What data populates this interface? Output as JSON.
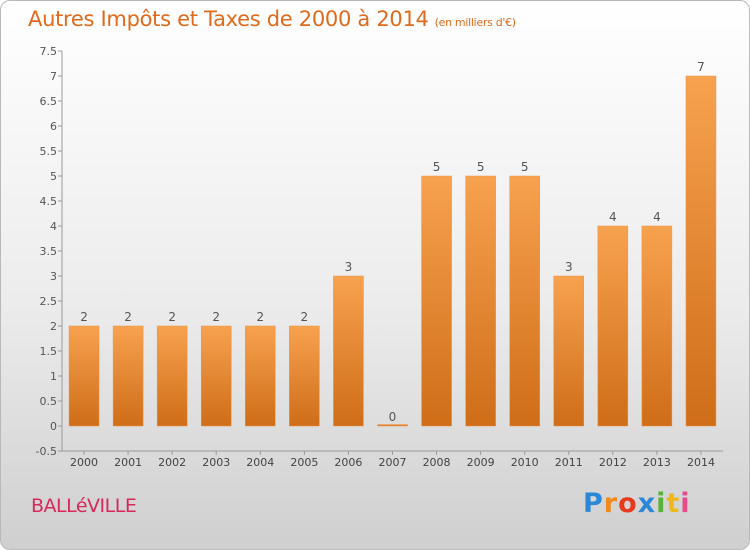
{
  "header": {
    "title": "Autres Impôts et Taxes de 2000 à 2014",
    "unit": "(en milliers d'€)"
  },
  "footer": {
    "town": "BALLéVILLE",
    "brand": [
      "P",
      "r",
      "o",
      "x",
      "i",
      "t",
      "i"
    ]
  },
  "chart_data": {
    "type": "bar",
    "title": "Autres Impôts et Taxes de 2000 à 2014",
    "subtitle": "(en milliers d'€)",
    "xlabel": "",
    "ylabel": "",
    "categories": [
      "2000",
      "2001",
      "2002",
      "2003",
      "2004",
      "2005",
      "2006",
      "2007",
      "2008",
      "2009",
      "2010",
      "2011",
      "2012",
      "2013",
      "2014"
    ],
    "values": [
      2,
      2,
      2,
      2,
      2,
      2,
      3,
      0,
      5,
      5,
      5,
      3,
      4,
      4,
      7
    ],
    "data_labels": [
      "2",
      "2",
      "2",
      "2",
      "2",
      "2",
      "3",
      "0",
      "5",
      "5",
      "5",
      "3",
      "4",
      "4",
      "7"
    ],
    "ylim": [
      -0.5,
      7.5
    ],
    "yticks": [
      "-0.5",
      "0",
      "0.5",
      "1",
      "1.5",
      "2",
      "2.5",
      "3",
      "3.5",
      "4",
      "4.5",
      "5",
      "5.5",
      "6",
      "6.5",
      "7",
      "7.5"
    ],
    "grid": false,
    "legend": "none",
    "colors": {
      "bar_top": "#f7a24f",
      "bar_bottom": "#cf6d18",
      "title": "#e06a1b",
      "town": "#d8295a"
    }
  }
}
